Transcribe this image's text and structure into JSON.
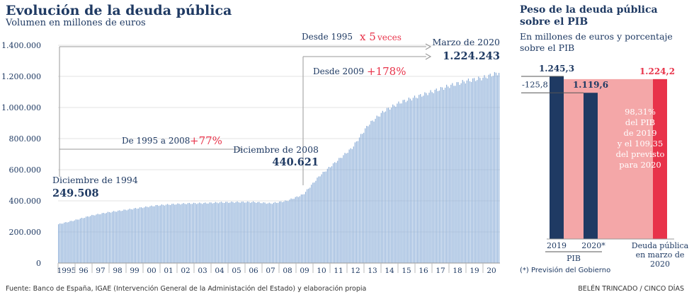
{
  "chart_data": [
    {
      "type": "bar",
      "title": "Evolución de la deuda pública",
      "subtitle": "Volumen en millones de euros",
      "ylim": [
        0,
        1400000
      ],
      "yticks": [
        0,
        200000,
        400000,
        600000,
        800000,
        1000000,
        1200000,
        1400000
      ],
      "ytick_labels": [
        "0",
        "200.000",
        "400.000",
        "600.000",
        "800.000",
        "1.000.000",
        "1.200.000",
        "1.400.000"
      ],
      "x_tick_labels": [
        "1995",
        "96",
        "97",
        "98",
        "99",
        "00",
        "01",
        "02",
        "03",
        "04",
        "05",
        "06",
        "07",
        "08",
        "09",
        "10",
        "11",
        "12",
        "13",
        "14",
        "15",
        "16",
        "17",
        "18",
        "19",
        "20"
      ],
      "color": "#8fb0d9",
      "points": [
        {
          "x": "Dec 1994",
          "y": 249508
        },
        {
          "x": "1995",
          "y": 275000
        },
        {
          "x": "1996",
          "y": 305000
        },
        {
          "x": "1997",
          "y": 325000
        },
        {
          "x": "1998",
          "y": 340000
        },
        {
          "x": "1999",
          "y": 355000
        },
        {
          "x": "2000",
          "y": 370000
        },
        {
          "x": "2001",
          "y": 378000
        },
        {
          "x": "2002",
          "y": 383000
        },
        {
          "x": "2003",
          "y": 385000
        },
        {
          "x": "2004",
          "y": 390000
        },
        {
          "x": "2005",
          "y": 392000
        },
        {
          "x": "2006",
          "y": 392000
        },
        {
          "x": "2007",
          "y": 383000
        },
        {
          "x": "2008",
          "y": 400000
        },
        {
          "x": "Dec 2008",
          "y": 440621
        },
        {
          "x": "2009",
          "y": 560000
        },
        {
          "x": "2010",
          "y": 650000
        },
        {
          "x": "2011",
          "y": 740000
        },
        {
          "x": "2012",
          "y": 890000
        },
        {
          "x": "2013",
          "y": 980000
        },
        {
          "x": "2014",
          "y": 1035000
        },
        {
          "x": "2015",
          "y": 1070000
        },
        {
          "x": "2016",
          "y": 1105000
        },
        {
          "x": "2017",
          "y": 1140000
        },
        {
          "x": "2018",
          "y": 1170000
        },
        {
          "x": "2019",
          "y": 1190000
        },
        {
          "x": "Mar 2020",
          "y": 1224243
        }
      ],
      "annotations": {
        "start_label": "Diciembre de 1994",
        "start_value": "249.508",
        "mid_label": "Diciembre de 2008",
        "mid_value": "440.621",
        "end_label": "Marzo de 2020",
        "end_value": "1.224.243",
        "range1_label": "De 1995 a 2008",
        "range1_pct": "+77%",
        "range2_label": "Desde 2009",
        "range2_pct": "+178%",
        "range3_label": "Desde 1995",
        "range3_x": "x 5",
        "range3_x_suffix": "veces"
      }
    },
    {
      "type": "bar",
      "title": "Peso de la deuda pública sobre el PIB",
      "subtitle": "En millones de euros y porcentaje sobre el PIB",
      "bars": [
        {
          "label": "2019",
          "value": 1245.3,
          "value_label": "1.245,3",
          "color": "#1f3a63"
        },
        {
          "label": "2020*",
          "value": 1119.6,
          "value_label": "1.119,6",
          "color": "#1f3a63"
        },
        {
          "label": "Deuda pública en marzo de 2020",
          "value": 1224.2,
          "value_label": "1.224,2",
          "color": "#e8334a"
        }
      ],
      "group_label": "PIB",
      "difference_label": "-125,8",
      "ratio_text": [
        "98,31%",
        "del PIB",
        "de 2019",
        "y el 109,35",
        "del previsto",
        "para 2020"
      ],
      "debt_label_lines": [
        "Deuda pública",
        "en marzo de",
        "2020"
      ],
      "colors": {
        "band": "#f4a7a8",
        "accent": "#e8334a",
        "dark": "#1f3a63"
      }
    }
  ],
  "footnote": "(*) Previsión del Gobierno",
  "footer": {
    "source": "Fuente: Banco de España, IGAE (Intervención General de la Administación del Estado) y elaboración propia",
    "credit": "BELÉN TRINCADO / CINCO DÍAS"
  }
}
